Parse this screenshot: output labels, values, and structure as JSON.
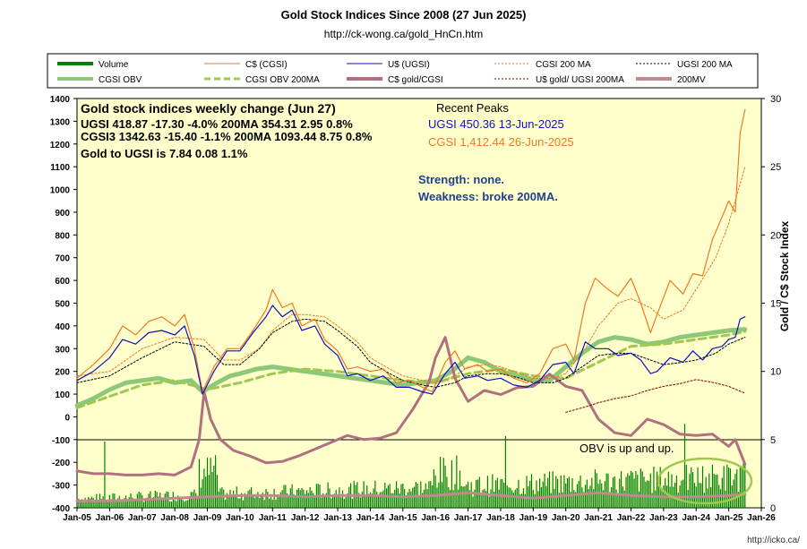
{
  "header": {
    "title": "Gold Stock Indices Since 2008 (27 Jun 2025)",
    "subtitle": "http://ck-wong.ca/gold_HnCn.htm"
  },
  "credit": "http://icko.ca/",
  "colors": {
    "background": "#FFFFCC",
    "volume": "#008000",
    "cgsi": "#F07820",
    "ugsi": "#1010C0",
    "cgsi_ma": "#F07820",
    "ugsi_ma": "#000000",
    "obv": "#8CC878",
    "obv_ma": "#A0C850",
    "gold_cgsi": "#B07080",
    "gold_ugsi": "#800000",
    "mv200": "#C08890",
    "blue_text": "#1F3F8F",
    "orange_text": "#F07820"
  },
  "annotations": {
    "weekly_title": "Gold stock indices weekly change (Jun 27)",
    "ugsi_line": "UGSI  418.87  -17.30  -4.0%     200MA  354.31  2.95  0.8%",
    "cgsi_line": "CGSI3  1342.63  -15.40  -1.1%     200MA  1093.44  8.75  0.8%",
    "gold_line": "Gold to UGSI  is  7.84  0.08  1.1%",
    "recent_peaks": "Recent Peaks",
    "ugsi_peak": "UGSI 450.36 13-Jun-2025",
    "cgsi_peak": "CGSI 1,412.44 26-Jun-2025",
    "strength": "Strength: none.",
    "weakness": "Weakness: broke 200MA.",
    "obv_note": "OBV is up and up."
  },
  "chart_data": {
    "type": "line",
    "legend": [
      {
        "label": "Volume",
        "key": "volume",
        "style": "thick"
      },
      {
        "label": "C$ (CGSI)",
        "key": "cgsi",
        "style": "solid"
      },
      {
        "label": "U$ (UGSI)",
        "key": "ugsi",
        "style": "solid"
      },
      {
        "label": "CGSI 200 MA",
        "key": "cgsi_ma",
        "style": "dotted"
      },
      {
        "label": "UGSI 200 MA",
        "key": "ugsi_ma",
        "style": "dotted"
      },
      {
        "label": "CGSI OBV",
        "key": "obv",
        "style": "thick"
      },
      {
        "label": "CGSI OBV 200MA",
        "key": "obv_ma",
        "style": "dashed"
      },
      {
        "label": "C$ gold/CGSI",
        "key": "gold_cgsi",
        "style": "thick"
      },
      {
        "label": "U$ gold/ UGSI 200MA",
        "key": "gold_ugsi",
        "style": "dotted"
      },
      {
        "label": "200MV",
        "key": "mv200",
        "style": "thick"
      }
    ],
    "x_ticks": [
      "Jan-05",
      "Jan-06",
      "Jan-07",
      "Jan-08",
      "Jan-09",
      "Jan-10",
      "Jan-11",
      "Jan-12",
      "Jan-13",
      "Jan-14",
      "Jan-15",
      "Jan-16",
      "Jan-17",
      "Jan-18",
      "Jan-19",
      "Jan-20",
      "Jan-21",
      "Jan-22",
      "Jan-23",
      "Jan-24",
      "Jan-25",
      "Jan-26"
    ],
    "xlim": [
      2005.0,
      2026.0
    ],
    "y_left": {
      "ticks": [
        -400,
        -300,
        -200,
        -100,
        0,
        100,
        200,
        300,
        400,
        500,
        600,
        700,
        800,
        900,
        1000,
        1100,
        1200,
        1300,
        1400
      ],
      "lim": [
        -400,
        1400
      ]
    },
    "y_right": {
      "label": "Gold / C$ Stock Index",
      "ticks": [
        0,
        5,
        10,
        15,
        20,
        25,
        30
      ],
      "lim": [
        0,
        30
      ]
    },
    "series": [
      {
        "key": "cgsi",
        "axis": "left",
        "x": [
          2005.0,
          2005.5,
          2006.0,
          2006.4,
          2006.8,
          2007.2,
          2007.6,
          2008.0,
          2008.3,
          2008.6,
          2008.85,
          2009.2,
          2009.6,
          2010.0,
          2010.4,
          2010.8,
          2011.0,
          2011.3,
          2011.6,
          2011.9,
          2012.3,
          2012.6,
          2013.0,
          2013.3,
          2013.6,
          2014.0,
          2014.4,
          2014.8,
          2015.2,
          2015.6,
          2015.9,
          2016.3,
          2016.6,
          2016.9,
          2017.3,
          2017.6,
          2018.0,
          2018.4,
          2018.8,
          2019.2,
          2019.6,
          2020.0,
          2020.25,
          2020.6,
          2020.9,
          2021.3,
          2021.6,
          2022.0,
          2022.3,
          2022.6,
          2022.8,
          2023.2,
          2023.6,
          2023.9,
          2024.2,
          2024.5,
          2024.8,
          2025.0,
          2025.2,
          2025.35,
          2025.5
        ],
        "y": [
          170,
          230,
          300,
          400,
          360,
          420,
          440,
          400,
          450,
          300,
          110,
          220,
          300,
          300,
          380,
          470,
          560,
          480,
          500,
          400,
          430,
          340,
          290,
          210,
          220,
          200,
          210,
          150,
          160,
          130,
          110,
          240,
          290,
          210,
          230,
          200,
          210,
          170,
          150,
          190,
          300,
          320,
          250,
          500,
          610,
          560,
          530,
          610,
          500,
          370,
          450,
          600,
          540,
          630,
          620,
          780,
          880,
          950,
          900,
          1250,
          1350
        ]
      },
      {
        "key": "ugsi",
        "axis": "left",
        "x": [
          2005.0,
          2005.5,
          2006.0,
          2006.4,
          2006.8,
          2007.2,
          2007.6,
          2008.0,
          2008.3,
          2008.6,
          2008.85,
          2009.2,
          2009.6,
          2010.0,
          2010.4,
          2010.8,
          2011.0,
          2011.3,
          2011.6,
          2011.9,
          2012.3,
          2012.6,
          2013.0,
          2013.3,
          2013.6,
          2014.0,
          2014.4,
          2014.8,
          2015.2,
          2015.6,
          2015.9,
          2016.3,
          2016.6,
          2016.9,
          2017.3,
          2017.6,
          2018.0,
          2018.4,
          2018.8,
          2019.2,
          2019.6,
          2020.0,
          2020.25,
          2020.6,
          2020.9,
          2021.3,
          2021.6,
          2022.0,
          2022.3,
          2022.6,
          2022.8,
          2023.2,
          2023.6,
          2023.9,
          2024.2,
          2024.5,
          2024.8,
          2025.0,
          2025.2,
          2025.35,
          2025.5
        ],
        "y": [
          160,
          200,
          260,
          340,
          320,
          370,
          380,
          360,
          400,
          270,
          100,
          200,
          290,
          290,
          370,
          440,
          490,
          440,
          470,
          380,
          400,
          320,
          270,
          180,
          190,
          160,
          180,
          130,
          130,
          110,
          100,
          190,
          240,
          170,
          180,
          160,
          170,
          140,
          130,
          160,
          230,
          240,
          190,
          330,
          300,
          300,
          270,
          280,
          250,
          190,
          200,
          260,
          240,
          290,
          250,
          300,
          310,
          340,
          350,
          430,
          440
        ]
      },
      {
        "key": "cgsi_ma",
        "axis": "left",
        "x": [
          2005.0,
          2006.0,
          2007.0,
          2008.0,
          2008.9,
          2009.5,
          2010.0,
          2010.6,
          2011.0,
          2011.6,
          2012.0,
          2012.6,
          2013.0,
          2013.6,
          2014.0,
          2014.6,
          2015.0,
          2015.6,
          2016.0,
          2016.6,
          2017.0,
          2017.6,
          2018.0,
          2018.6,
          2019.0,
          2019.6,
          2020.0,
          2020.6,
          2021.0,
          2021.6,
          2022.0,
          2022.6,
          2023.0,
          2023.6,
          2024.0,
          2024.6,
          2025.0,
          2025.5
        ],
        "y": [
          180,
          200,
          300,
          350,
          340,
          250,
          250,
          300,
          380,
          450,
          450,
          440,
          400,
          330,
          260,
          210,
          180,
          160,
          150,
          180,
          220,
          230,
          220,
          190,
          170,
          170,
          190,
          300,
          400,
          500,
          520,
          480,
          430,
          470,
          560,
          700,
          850,
          1100
        ]
      },
      {
        "key": "ugsi_ma",
        "axis": "left",
        "x": [
          2005.0,
          2006.0,
          2007.0,
          2008.0,
          2008.9,
          2009.5,
          2010.0,
          2010.6,
          2011.0,
          2011.6,
          2012.0,
          2012.6,
          2013.0,
          2013.6,
          2014.0,
          2014.6,
          2015.0,
          2015.6,
          2016.0,
          2016.6,
          2017.0,
          2017.6,
          2018.0,
          2018.6,
          2019.0,
          2019.6,
          2020.0,
          2020.6,
          2021.0,
          2021.6,
          2022.0,
          2022.6,
          2023.0,
          2023.6,
          2024.0,
          2024.6,
          2025.0,
          2025.5
        ],
        "y": [
          150,
          180,
          260,
          330,
          310,
          230,
          230,
          300,
          370,
          420,
          430,
          420,
          380,
          310,
          240,
          190,
          160,
          140,
          130,
          150,
          180,
          190,
          190,
          170,
          150,
          150,
          170,
          230,
          270,
          280,
          280,
          250,
          230,
          240,
          250,
          280,
          320,
          350
        ]
      },
      {
        "key": "obv",
        "axis": "left",
        "x": [
          2005.0,
          2005.5,
          2006.0,
          2006.5,
          2007.0,
          2007.5,
          2008.0,
          2008.5,
          2008.85,
          2009.3,
          2009.7,
          2010.0,
          2010.5,
          2011.0,
          2011.5,
          2012.0,
          2012.5,
          2013.0,
          2013.5,
          2014.0,
          2014.5,
          2015.0,
          2015.5,
          2016.0,
          2016.5,
          2017.0,
          2017.5,
          2018.0,
          2018.5,
          2019.0,
          2019.5,
          2020.0,
          2020.5,
          2021.0,
          2021.5,
          2022.0,
          2022.5,
          2023.0,
          2023.5,
          2024.0,
          2024.5,
          2025.0,
          2025.5
        ],
        "y": [
          50,
          80,
          120,
          150,
          160,
          170,
          150,
          160,
          110,
          150,
          180,
          190,
          210,
          220,
          210,
          200,
          190,
          180,
          170,
          160,
          150,
          140,
          150,
          160,
          200,
          260,
          240,
          200,
          180,
          160,
          160,
          220,
          280,
          330,
          350,
          340,
          320,
          330,
          350,
          360,
          370,
          380,
          385
        ]
      },
      {
        "key": "obv_ma",
        "axis": "left",
        "x": [
          2005.0,
          2006.0,
          2007.0,
          2008.0,
          2009.0,
          2010.0,
          2011.0,
          2012.0,
          2013.0,
          2014.0,
          2015.0,
          2016.0,
          2017.0,
          2018.0,
          2019.0,
          2020.0,
          2021.0,
          2022.0,
          2023.0,
          2024.0,
          2025.0,
          2025.5
        ],
        "y": [
          40,
          90,
          140,
          160,
          120,
          150,
          190,
          210,
          200,
          180,
          160,
          150,
          190,
          210,
          180,
          170,
          240,
          310,
          320,
          340,
          360,
          375
        ]
      },
      {
        "key": "gold_cgsi",
        "axis": "right",
        "x": [
          2005.0,
          2005.5,
          2006.0,
          2006.5,
          2007.0,
          2007.5,
          2008.0,
          2008.5,
          2008.75,
          2008.9,
          2009.1,
          2009.4,
          2009.8,
          2010.3,
          2010.8,
          2011.3,
          2011.8,
          2012.3,
          2012.8,
          2013.3,
          2013.8,
          2014.3,
          2014.8,
          2015.3,
          2015.8,
          2016.0,
          2016.3,
          2016.6,
          2017.0,
          2017.5,
          2018.0,
          2018.5,
          2019.0,
          2019.5,
          2020.0,
          2020.5,
          2021.0,
          2021.5,
          2022.0,
          2022.5,
          2023.0,
          2023.5,
          2024.0,
          2024.5,
          2025.0,
          2025.2,
          2025.5
        ],
        "y": [
          2.7,
          2.5,
          2.5,
          2.4,
          2.4,
          2.5,
          2.4,
          3.0,
          5.0,
          8.5,
          6.5,
          5.0,
          4.2,
          3.8,
          3.3,
          3.4,
          3.8,
          4.3,
          4.8,
          5.3,
          5.0,
          5.1,
          5.5,
          7.2,
          9.2,
          11.0,
          12.5,
          9.5,
          7.8,
          8.6,
          8.3,
          8.8,
          8.9,
          9.8,
          8.9,
          8.6,
          6.5,
          5.5,
          5.3,
          6.5,
          6.1,
          5.4,
          5.3,
          5.4,
          4.5,
          5.0,
          3.2
        ]
      },
      {
        "key": "gold_ugsi",
        "axis": "right",
        "x": [
          2020.0,
          2020.6,
          2021.0,
          2021.5,
          2022.0,
          2022.5,
          2023.0,
          2023.5,
          2024.0,
          2024.5,
          2025.0,
          2025.5
        ],
        "y": [
          7.0,
          7.4,
          7.7,
          8.0,
          8.2,
          8.6,
          8.9,
          9.1,
          9.4,
          9.2,
          8.9,
          8.4
        ]
      },
      {
        "key": "mv200",
        "axis": "right",
        "x": [
          2005.0,
          2006.0,
          2007.0,
          2008.0,
          2009.0,
          2010.0,
          2011.0,
          2012.0,
          2013.0,
          2014.0,
          2015.0,
          2016.0,
          2017.0,
          2018.0,
          2019.0,
          2020.0,
          2021.0,
          2022.0,
          2023.0,
          2024.0,
          2025.0,
          2025.5
        ],
        "y": [
          0.5,
          0.5,
          0.6,
          0.7,
          0.8,
          0.9,
          0.9,
          0.8,
          0.9,
          0.9,
          0.8,
          0.9,
          1.1,
          0.9,
          0.7,
          0.9,
          1.1,
          0.9,
          0.8,
          0.8,
          0.9,
          1.0
        ]
      }
    ]
  }
}
